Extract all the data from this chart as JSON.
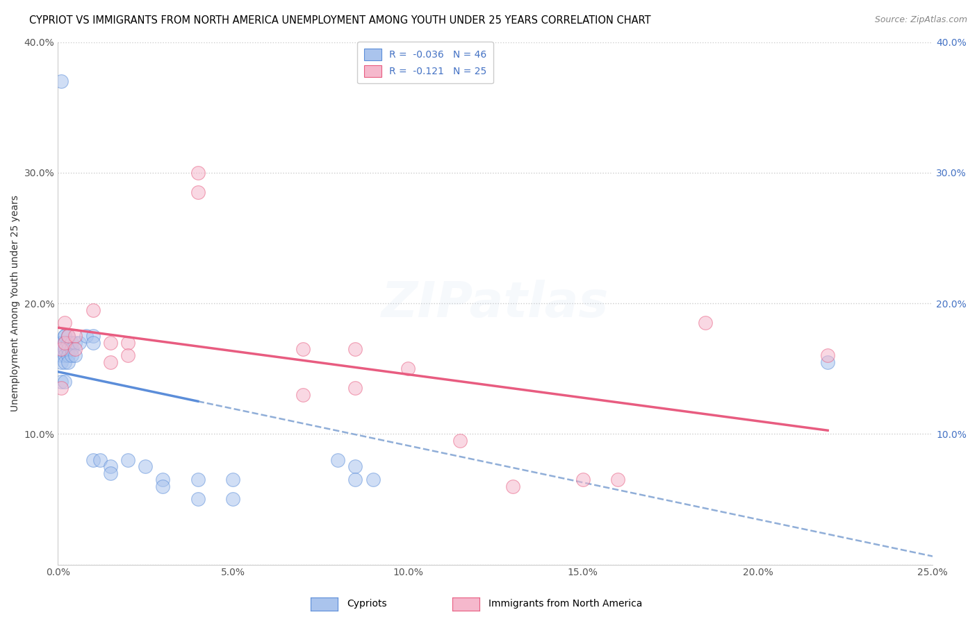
{
  "title": "CYPRIOT VS IMMIGRANTS FROM NORTH AMERICA UNEMPLOYMENT AMONG YOUTH UNDER 25 YEARS CORRELATION CHART",
  "source": "Source: ZipAtlas.com",
  "ylabel": "Unemployment Among Youth under 25 years",
  "xlabel": "",
  "watermark": "ZIPatlas",
  "legend_label1": "Cypriots",
  "legend_label2": "Immigrants from North America",
  "r1": "-0.036",
  "n1": "46",
  "r2": "-0.121",
  "n2": "25",
  "xlim": [
    0.0,
    0.25
  ],
  "ylim": [
    0.0,
    0.4
  ],
  "xticks": [
    0.0,
    0.05,
    0.1,
    0.15,
    0.2,
    0.25
  ],
  "yticks": [
    0.0,
    0.1,
    0.2,
    0.3,
    0.4
  ],
  "xticklabels": [
    "0.0%",
    "5.0%",
    "10.0%",
    "15.0%",
    "20.0%",
    "25.0%"
  ],
  "yticklabels": [
    "",
    "10.0%",
    "20.0%",
    "30.0%",
    "40.0%"
  ],
  "blue_scatter_x": [
    0.001,
    0.001,
    0.001,
    0.001,
    0.001,
    0.001,
    0.001,
    0.002,
    0.002,
    0.002,
    0.002,
    0.002,
    0.002,
    0.002,
    0.002,
    0.003,
    0.003,
    0.003,
    0.003,
    0.003,
    0.004,
    0.004,
    0.004,
    0.005,
    0.005,
    0.006,
    0.008,
    0.01,
    0.01,
    0.01,
    0.012,
    0.015,
    0.015,
    0.02,
    0.025,
    0.03,
    0.03,
    0.04,
    0.04,
    0.05,
    0.05,
    0.08,
    0.085,
    0.085,
    0.09,
    0.22
  ],
  "blue_scatter_y": [
    0.37,
    0.17,
    0.17,
    0.165,
    0.16,
    0.155,
    0.14,
    0.175,
    0.175,
    0.17,
    0.165,
    0.165,
    0.16,
    0.155,
    0.14,
    0.175,
    0.17,
    0.165,
    0.16,
    0.155,
    0.17,
    0.165,
    0.16,
    0.17,
    0.16,
    0.17,
    0.175,
    0.175,
    0.17,
    0.08,
    0.08,
    0.075,
    0.07,
    0.08,
    0.075,
    0.065,
    0.06,
    0.065,
    0.05,
    0.065,
    0.05,
    0.08,
    0.075,
    0.065,
    0.065,
    0.155
  ],
  "pink_scatter_x": [
    0.001,
    0.001,
    0.002,
    0.002,
    0.003,
    0.005,
    0.005,
    0.01,
    0.015,
    0.015,
    0.02,
    0.02,
    0.04,
    0.04,
    0.07,
    0.07,
    0.085,
    0.085,
    0.1,
    0.115,
    0.13,
    0.15,
    0.16,
    0.185,
    0.22
  ],
  "pink_scatter_y": [
    0.165,
    0.135,
    0.185,
    0.17,
    0.175,
    0.175,
    0.165,
    0.195,
    0.17,
    0.155,
    0.17,
    0.16,
    0.3,
    0.285,
    0.165,
    0.13,
    0.165,
    0.135,
    0.15,
    0.095,
    0.06,
    0.065,
    0.065,
    0.185,
    0.16
  ],
  "blue_color": "#aac4ed",
  "pink_color": "#f5b8cc",
  "blue_line_color": "#5b8dd9",
  "pink_line_color": "#e85c80",
  "dashed_line_color": "#90aed8",
  "title_fontsize": 10.5,
  "source_fontsize": 9,
  "axis_label_fontsize": 10,
  "tick_fontsize": 10,
  "legend_fontsize": 10,
  "watermark_fontsize": 52,
  "watermark_alpha": 0.1,
  "scatter_size": 200,
  "scatter_alpha": 0.55,
  "background_color": "#ffffff",
  "grid_color": "#cccccc",
  "right_ytick_color": "#4472c4",
  "blue_trend_xstart": 0.0,
  "blue_trend_xend": 0.04,
  "pink_trend_xstart": 0.0,
  "pink_trend_xend": 0.22,
  "dashed_xstart": 0.04,
  "dashed_xend": 0.25
}
